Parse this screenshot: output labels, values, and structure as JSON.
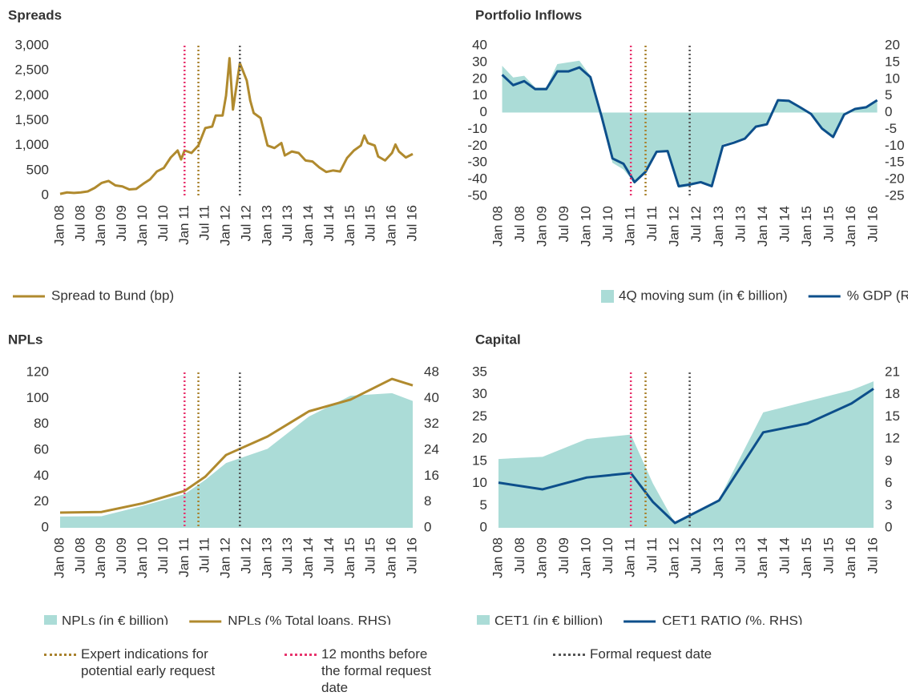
{
  "chart_data": [
    {
      "type": "line",
      "title": "Spreads",
      "x": [
        "Jan 08",
        "Mar 08",
        "May 08",
        "Jul 08",
        "Sep 08",
        "Nov 08",
        "Jan 09",
        "Mar 09",
        "May 09",
        "Jul 09",
        "Sep 09",
        "Nov 09",
        "Jan 10",
        "Mar 10",
        "May 10",
        "Jul 10",
        "Sep 10",
        "Nov 10",
        "Dec 10",
        "Jan 11",
        "Mar 11",
        "May 11",
        "Jul 11",
        "Sep 11",
        "Oct 11",
        "Dec 11",
        "Jan 12",
        "Feb 12",
        "Mar 12",
        "May 12",
        "Jul 12",
        "Aug 12",
        "Sep 12",
        "Nov 12",
        "Jan 13",
        "Mar 13",
        "May 13",
        "Jun 13",
        "Aug 13",
        "Oct 13",
        "Dec 13",
        "Feb 14",
        "Apr 14",
        "Jun 14",
        "Aug 14",
        "Oct 14",
        "Dec 14",
        "Feb 15",
        "Apr 15",
        "May 15",
        "Jun 15",
        "Aug 15",
        "Sep 15",
        "Nov 15",
        "Jan 16",
        "Feb 16",
        "Mar 16",
        "May 16",
        "Jul 16"
      ],
      "xlim": [
        "Jan 08",
        "Jul 16"
      ],
      "xticks": [
        "Jan 08",
        "Jul 08",
        "Jan 09",
        "Jul 09",
        "Jan 10",
        "Jul 10",
        "Jan 11",
        "Jul 11",
        "Jan 12",
        "Jul 12",
        "Jan 13",
        "Jul 13",
        "Jan 14",
        "Jul 14",
        "Jan 15",
        "Jul 15",
        "Jan 16",
        "Jul 16"
      ],
      "ylim": [
        0,
        3000
      ],
      "yticks": [
        0,
        500,
        {
          "value": 1000,
          "label": "1,000"
        },
        {
          "value": 1500,
          "label": "1,500"
        },
        {
          "value": 2000,
          "label": "2,000"
        },
        {
          "value": 2500,
          "label": "2,500"
        },
        {
          "value": 3000,
          "label": "3,000"
        }
      ],
      "series": [
        {
          "name": "Spread to Bund (bp)",
          "type": "line",
          "color": "#b08a2e",
          "values": [
            30,
            60,
            50,
            60,
            80,
            150,
            250,
            290,
            200,
            180,
            120,
            130,
            230,
            320,
            480,
            550,
            760,
            900,
            720,
            900,
            850,
            1000,
            1350,
            1380,
            1600,
            1600,
            2000,
            2750,
            1720,
            2650,
            2300,
            1900,
            1650,
            1550,
            1000,
            950,
            1050,
            800,
            880,
            850,
            700,
            680,
            560,
            470,
            500,
            480,
            750,
            900,
            1000,
            1200,
            1050,
            1000,
            780,
            700,
            850,
            1020,
            880,
            760,
            830
          ]
        }
      ]
    },
    {
      "type": "combo",
      "title": "Portfolio Inflows",
      "x": [
        "Feb 08",
        "May 08",
        "Aug 08",
        "Nov 08",
        "Feb 09",
        "May 09",
        "Aug 09",
        "Nov 09",
        "Feb 10",
        "May 10",
        "Aug 10",
        "Nov 10",
        "Feb 11",
        "May 11",
        "Aug 11",
        "Nov 11",
        "Feb 12",
        "May 12",
        "Aug 12",
        "Nov 12",
        "Feb 13",
        "May 13",
        "Aug 13",
        "Nov 13",
        "Feb 14",
        "May 14",
        "Aug 14",
        "Nov 14",
        "Feb 15",
        "May 15",
        "Aug 15",
        "Nov 15",
        "Feb 16",
        "May 16",
        "Aug 16"
      ],
      "xlim": [
        "Jan 08",
        "Jul 16"
      ],
      "xticks": [
        "Jan 08",
        "Jul 08",
        "Jan 09",
        "Jul 09",
        "Jan 10",
        "Jul 10",
        "Jan 11",
        "Jul 11",
        "Jan 12",
        "Jul 12",
        "Jan 13",
        "Jul 13",
        "Jan 14",
        "Jul 14",
        "Jan 15",
        "Jul 15",
        "Jan 16",
        "Jul 16"
      ],
      "ylim": [
        -50,
        40
      ],
      "yticks": [
        -50,
        -40,
        -30,
        -20,
        -10,
        0,
        10,
        20,
        30,
        40
      ],
      "y2lim": [
        -25,
        20
      ],
      "y2ticks": [
        -25,
        -20,
        -15,
        -10,
        -5,
        0,
        5,
        10,
        15,
        20
      ],
      "series": [
        {
          "name": "4Q moving sum (in € billion)",
          "type": "area",
          "color": "#abdcd7",
          "values": [
            28,
            21,
            22,
            15,
            15,
            29,
            30,
            31,
            22,
            -2,
            -30,
            -34,
            -42,
            -36,
            -24,
            -23,
            -45,
            -44,
            -42,
            -44,
            -19,
            -17,
            -15,
            -8,
            -7,
            8,
            7,
            3,
            -1,
            -10,
            -15,
            -1,
            2,
            3,
            7
          ]
        },
        {
          "name": "% GDP (RHS)",
          "type": "line",
          "axis": "y2",
          "color": "#0d4f8b",
          "values": [
            11.3,
            8.2,
            9.4,
            7,
            7,
            12.3,
            12.3,
            13.5,
            10.6,
            -1,
            -13.7,
            -15.3,
            -20.8,
            -17.7,
            -11.7,
            -11.5,
            -22,
            -21.5,
            -20.8,
            -22,
            -10,
            -9,
            -7.8,
            -4.2,
            -3.5,
            3.7,
            3.5,
            1.6,
            -0.4,
            -4.8,
            -7.3,
            -0.6,
            1.1,
            1.6,
            3.7
          ]
        }
      ]
    },
    {
      "type": "combo",
      "title": "NPLs",
      "x": [
        "Jan 08",
        "Jan 09",
        "Jan 10",
        "Jan 11",
        "Jul 11",
        "Jan 12",
        "Jan 13",
        "Jan 14",
        "Jan 15",
        "Jan 16",
        "Jul 16"
      ],
      "xlim": [
        "Jan 08",
        "Jul 16"
      ],
      "xticks": [
        "Jan 08",
        "Jul 08",
        "Jan 09",
        "Jul 09",
        "Jan 10",
        "Jul 10",
        "Jan 11",
        "Jul 11",
        "Jan 12",
        "Jul 12",
        "Jan 13",
        "Jul 13",
        "Jan 14",
        "Jul 14",
        "Jan 15",
        "Jul 15",
        "Jan 16",
        "Jul 16"
      ],
      "ylim": [
        0,
        120
      ],
      "yticks": [
        0,
        20,
        40,
        60,
        80,
        100,
        120
      ],
      "y2lim": [
        0,
        48
      ],
      "y2ticks": [
        0,
        8,
        16,
        24,
        32,
        40,
        48
      ],
      "series": [
        {
          "name": "NPLs (in € billion)",
          "type": "area",
          "color": "#abdcd7",
          "values": [
            8.7,
            9,
            17,
            26,
            37,
            50,
            61,
            86,
            102,
            104,
            98
          ]
        },
        {
          "name": "NPLs (% Total loans, RHS)",
          "type": "line",
          "axis": "y2",
          "color": "#b08a2e",
          "values": [
            4.7,
            4.9,
            7.6,
            11.4,
            15.8,
            22.5,
            28.2,
            36,
            39.6,
            46,
            44
          ]
        }
      ]
    },
    {
      "type": "combo",
      "title": "Capital",
      "x": [
        "Jan 08",
        "Jan 09",
        "Jan 10",
        "Jan 11",
        "Jul 11",
        "Jan 12",
        "Jan 13",
        "Jan 14",
        "Jan 15",
        "Jan 16",
        "Jul 16"
      ],
      "xlim": [
        "Jan 08",
        "Jul 16"
      ],
      "xticks": [
        "Jan 08",
        "Jul 08",
        "Jan 09",
        "Jul 09",
        "Jan 10",
        "Jul 10",
        "Jan 11",
        "Jul 11",
        "Jan 12",
        "Jul 12",
        "Jan 13",
        "Jul 13",
        "Jan 14",
        "Jul 14",
        "Jan 15",
        "Jul 15",
        "Jan 16",
        "Jul 16"
      ],
      "ylim": [
        0,
        35
      ],
      "yticks": [
        0,
        5,
        10,
        15,
        20,
        25,
        30,
        35
      ],
      "y2lim": [
        0,
        21
      ],
      "y2ticks": [
        0,
        3,
        6,
        9,
        12,
        15,
        18,
        21
      ],
      "series": [
        {
          "name": "CET1 (in € billion)",
          "type": "area",
          "color": "#abdcd7",
          "values": [
            15.5,
            16,
            20,
            21,
            10,
            1,
            6.5,
            26,
            28.5,
            31,
            33
          ]
        },
        {
          "name": "CET1 RATIO (%, RHS)",
          "type": "line",
          "axis": "y2",
          "color": "#0d4f8b",
          "values": [
            6.1,
            5.2,
            6.8,
            7.4,
            3.5,
            0.65,
            3.7,
            12.9,
            14.1,
            16.8,
            18.8
          ]
        }
      ]
    }
  ],
  "reference_lines": [
    {
      "name": "Expert indications for potential early request",
      "color": "#a8812c",
      "x": "May 11"
    },
    {
      "name": "12 months before the formal request date",
      "color": "#e8336d",
      "x": "Jan 11"
    },
    {
      "name": "Formal request date",
      "color": "#555555",
      "x": "May 12"
    }
  ]
}
